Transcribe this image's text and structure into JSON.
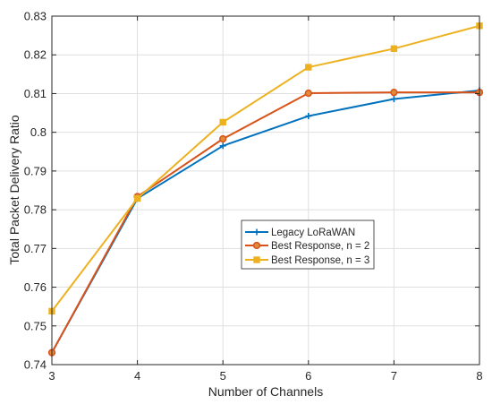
{
  "chart_data": {
    "type": "line",
    "title": "",
    "xlabel": "Number of Channels",
    "ylabel": "Total Packet Delivery Ratio",
    "xlim": [
      3,
      8
    ],
    "ylim": [
      0.74,
      0.83
    ],
    "x_ticks": [
      3,
      4,
      5,
      6,
      7,
      8
    ],
    "y_ticks": [
      0.74,
      0.75,
      0.76,
      0.77,
      0.78,
      0.79,
      0.8,
      0.81,
      0.82,
      0.83
    ],
    "grid": true,
    "legend_position": "center-right",
    "x": [
      3,
      4,
      5,
      6,
      7,
      8
    ],
    "series": [
      {
        "name": "Legacy LoRaWAN",
        "values": [
          0.7431,
          0.7829,
          0.7965,
          0.8042,
          0.8086,
          0.8108
        ],
        "color": "#0072BD",
        "marker": "plus"
      },
      {
        "name": "Best Response, n = 2",
        "values": [
          0.7431,
          0.7834,
          0.7983,
          0.8101,
          0.8103,
          0.8103
        ],
        "color": "#D95319",
        "marker": "circle"
      },
      {
        "name": "Best Response, n = 3",
        "values": [
          0.7538,
          0.7829,
          0.8026,
          0.8168,
          0.8216,
          0.8275
        ],
        "color": "#EDB120",
        "marker": "square"
      }
    ]
  }
}
